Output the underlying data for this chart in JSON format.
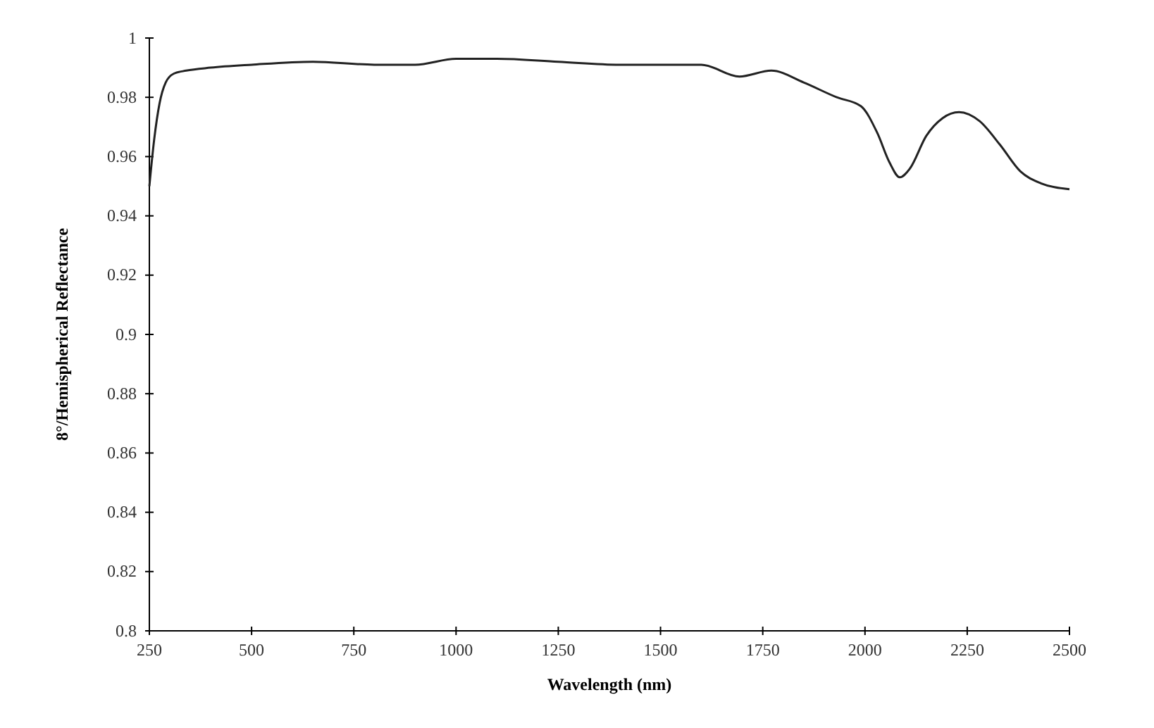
{
  "chart_data": {
    "type": "line",
    "xlabel": "Wavelength (nm)",
    "ylabel": "8°/Hemispherical Reflectance",
    "xlim": [
      250,
      2500
    ],
    "xticks": [
      250,
      500,
      750,
      1000,
      1250,
      1500,
      1750,
      2000,
      2250,
      2500
    ],
    "ylim": [
      0.8,
      1
    ],
    "yticks": [
      0.8,
      0.82,
      0.84,
      0.86,
      0.88,
      0.9,
      0.92,
      0.94,
      0.96,
      0.98,
      1
    ],
    "grid": false,
    "marker": "none",
    "line_style": "solid",
    "series": [
      {
        "color": "#222222",
        "x": [
          250,
          262,
          275,
          290,
          310,
          340,
          400,
          500,
          650,
          800,
          900,
          1000,
          1100,
          1250,
          1400,
          1600,
          1693,
          1771,
          1850,
          1931,
          1990,
          2030,
          2060,
          2085,
          2110,
          2150,
          2190,
          2230,
          2280,
          2330,
          2380,
          2430,
          2500
        ],
        "values": [
          0.95,
          0.966,
          0.978,
          0.985,
          0.988,
          0.989,
          0.99,
          0.991,
          0.992,
          0.991,
          0.991,
          0.993,
          0.993,
          0.992,
          0.991,
          0.991,
          0.987,
          0.989,
          0.985,
          0.98,
          0.977,
          0.968,
          0.958,
          0.953,
          0.956,
          0.967,
          0.973,
          0.975,
          0.972,
          0.964,
          0.955,
          0.951,
          0.949
        ]
      }
    ]
  }
}
